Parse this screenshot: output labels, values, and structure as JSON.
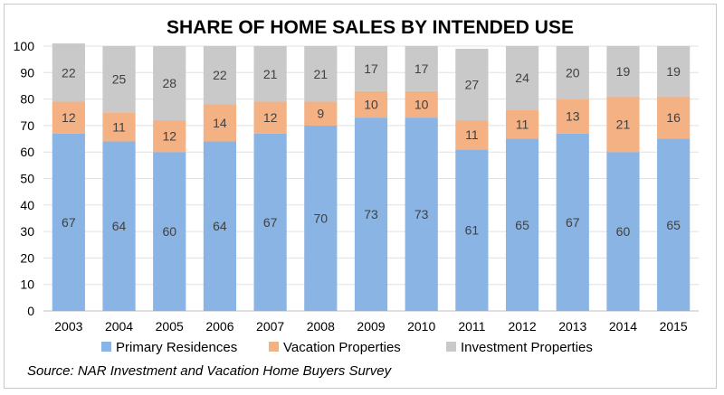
{
  "chart_data": {
    "type": "bar",
    "stacked": true,
    "title": "SHARE OF HOME SALES BY INTENDED USE",
    "xlabel": "",
    "ylabel": "",
    "ylim": [
      0,
      100
    ],
    "yticks": [
      0,
      10,
      20,
      30,
      40,
      50,
      60,
      70,
      80,
      90,
      100
    ],
    "categories": [
      "2003",
      "2004",
      "2005",
      "2006",
      "2007",
      "2008",
      "2009",
      "2010",
      "2011",
      "2012",
      "2013",
      "2014",
      "2015"
    ],
    "series": [
      {
        "name": "Primary Residences",
        "color": "#8ab4e3",
        "values": [
          67,
          64,
          60,
          64,
          67,
          70,
          73,
          73,
          61,
          65,
          67,
          60,
          65
        ]
      },
      {
        "name": "Vacation Properties",
        "color": "#f4b183",
        "values": [
          12,
          11,
          12,
          14,
          12,
          9,
          10,
          10,
          11,
          11,
          13,
          21,
          16
        ]
      },
      {
        "name": "Investment Properties",
        "color": "#c9c9c9",
        "values": [
          22,
          25,
          28,
          22,
          21,
          21,
          17,
          17,
          27,
          24,
          20,
          19,
          19
        ]
      }
    ],
    "grid": true,
    "legend_position": "bottom",
    "source": "Source: NAR Investment and Vacation Home Buyers Survey"
  }
}
